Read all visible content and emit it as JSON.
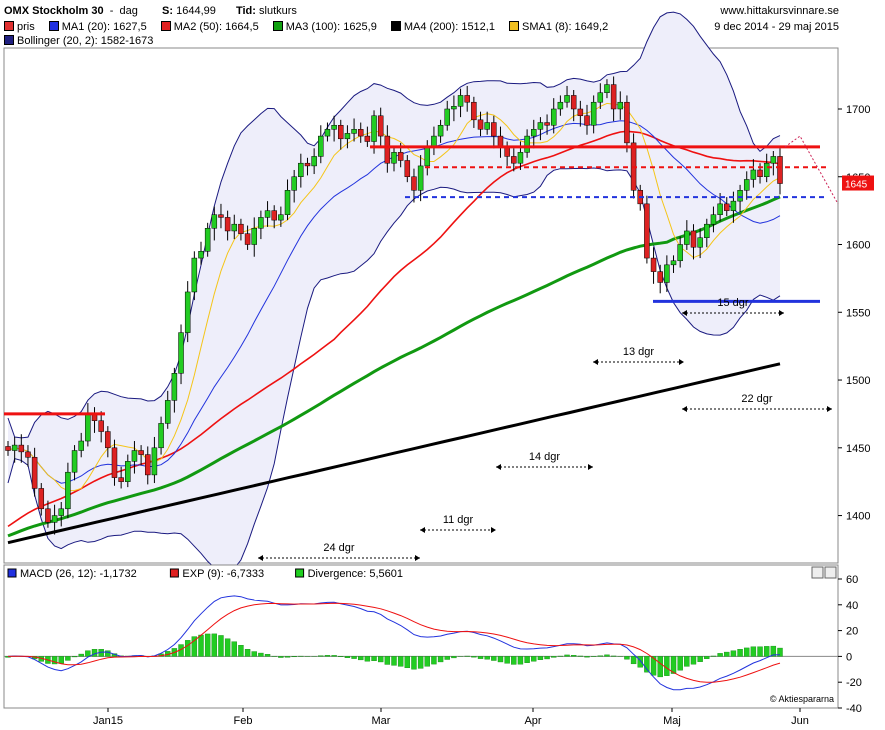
{
  "header": {
    "title": "OMX Stockholm 30",
    "period": "dag",
    "s_label": "S:",
    "s_value": "1644,99",
    "tid_label": "Tid:",
    "tid_value": "slutkurs",
    "website": "www.hittakursvinnare.se",
    "date_range": "9 dec 2014 - 29 maj 2015",
    "legend": [
      {
        "label": "pris",
        "color": "#e03030"
      },
      {
        "label": "MA1 (20): 1627,5",
        "color": "#2030e0"
      },
      {
        "label": "MA2 (50): 1664,5",
        "color": "#e02020"
      },
      {
        "label": "MA3 (100): 1625,9",
        "color": "#10a010"
      },
      {
        "label": "MA4 (200): 1512,1",
        "color": "#000000"
      },
      {
        "label": "SMA1 (8): 1649,2",
        "color": "#f0c020"
      },
      {
        "label": "Bollinger (20, 2): 1582-1673",
        "color": "#202080"
      }
    ]
  },
  "macd_header": {
    "legend": [
      {
        "label": "MACD (26, 12): -1,1732",
        "color": "#2030e0"
      },
      {
        "label": "EXP (9): -6,7333",
        "color": "#e02020"
      },
      {
        "label": "Divergence: 5,5601",
        "color": "#20d020"
      }
    ],
    "copyright": "© Aktiespararna"
  },
  "price_label": "1645",
  "colors": {
    "up_candle": "#22cc22",
    "down_candle": "#dd2222",
    "ma20": "#2233dd",
    "ma50": "#ee1111",
    "ma100": "#119911",
    "ma200": "#000000",
    "sma8": "#f5c518",
    "bollinger": "#1a1a80",
    "bollinger_fill": "#eeeefa"
  },
  "annotations": [
    {
      "text": "24 dgr"
    },
    {
      "text": "11 dgr"
    },
    {
      "text": "14 dgr"
    },
    {
      "text": "13 dgr"
    },
    {
      "text": "15 dgr"
    },
    {
      "text": "22 dgr"
    }
  ],
  "chart_data": [
    {
      "type": "candlestick",
      "yaxis_ticks": [
        1400,
        1450,
        1500,
        1550,
        1600,
        1650,
        1700
      ],
      "ylim": [
        1365,
        1745
      ],
      "xaxis_ticks": [
        "Jan15",
        "Feb",
        "Mar",
        "Apr",
        "Maj",
        "Jun"
      ],
      "levels": {
        "red_solid_old": 1475,
        "red_solid": 1672,
        "red_dashed": 1657,
        "blue_dashed": 1635,
        "blue_solid": 1558
      },
      "closes": [
        1448,
        1452,
        1447,
        1443,
        1420,
        1405,
        1395,
        1400,
        1405,
        1432,
        1448,
        1455,
        1475,
        1470,
        1462,
        1450,
        1428,
        1425,
        1440,
        1448,
        1445,
        1430,
        1450,
        1468,
        1485,
        1505,
        1535,
        1565,
        1590,
        1595,
        1612,
        1622,
        1620,
        1610,
        1615,
        1608,
        1600,
        1612,
        1620,
        1625,
        1618,
        1622,
        1640,
        1650,
        1660,
        1658,
        1665,
        1680,
        1685,
        1688,
        1678,
        1682,
        1685,
        1680,
        1676,
        1695,
        1680,
        1660,
        1668,
        1662,
        1650,
        1640,
        1658,
        1672,
        1680,
        1688,
        1700,
        1702,
        1710,
        1705,
        1692,
        1685,
        1690,
        1680,
        1672,
        1665,
        1660,
        1668,
        1680,
        1685,
        1690,
        1688,
        1700,
        1705,
        1710,
        1700,
        1695,
        1688,
        1705,
        1712,
        1718,
        1700,
        1705,
        1675,
        1640,
        1630,
        1590,
        1580,
        1572,
        1585,
        1588,
        1600,
        1610,
        1598,
        1605,
        1615,
        1622,
        1630,
        1625,
        1632,
        1640,
        1648,
        1655,
        1650,
        1660,
        1665,
        1645
      ],
      "ma200": [
        1380,
        1383,
        1386,
        1389,
        1392,
        1395,
        1398,
        1401,
        1404,
        1407,
        1410,
        1413,
        1416,
        1419,
        1422,
        1425,
        1428,
        1431,
        1434,
        1437,
        1440,
        1443,
        1446,
        1449,
        1452,
        1455,
        1458,
        1461,
        1464,
        1467,
        1470,
        1473,
        1476,
        1479,
        1482,
        1485,
        1488,
        1491,
        1494,
        1497,
        1500,
        1503,
        1506,
        1509,
        1512
      ],
      "macd": {
        "ylim": [
          -40,
          60
        ],
        "yaxis_ticks": [
          -40,
          -20,
          0,
          20,
          40,
          60
        ]
      }
    }
  ]
}
